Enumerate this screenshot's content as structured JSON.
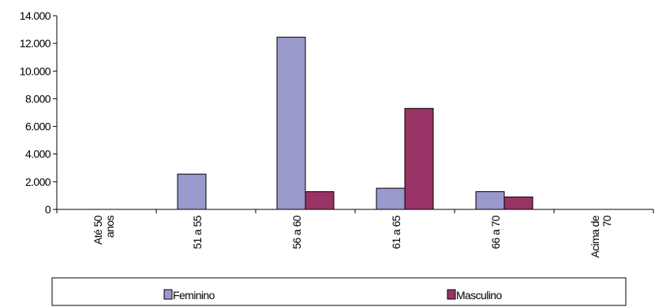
{
  "chart_data": {
    "type": "bar",
    "categories": [
      [
        "Até 50",
        "anos"
      ],
      [
        "51 a  55"
      ],
      [
        "56 a 60"
      ],
      [
        "61 a 65"
      ],
      [
        "66 a 70"
      ],
      [
        "Acima de",
        "70"
      ]
    ],
    "series": [
      {
        "name": "Feminino",
        "color": "#9999cc",
        "values": [
          0,
          2550,
          12450,
          1530,
          1280,
          0
        ]
      },
      {
        "name": "Masculino",
        "color": "#993366",
        "values": [
          0,
          0,
          1280,
          7300,
          900,
          0
        ]
      }
    ],
    "ylim": [
      0,
      14000
    ],
    "yticks": [
      "0",
      "2.000",
      "4.000",
      "6.000",
      "8.000",
      "10.000",
      "12.000",
      "14.000"
    ],
    "title": "",
    "xlabel": "",
    "ylabel": "",
    "grid": false,
    "legend_position": "bottom"
  }
}
